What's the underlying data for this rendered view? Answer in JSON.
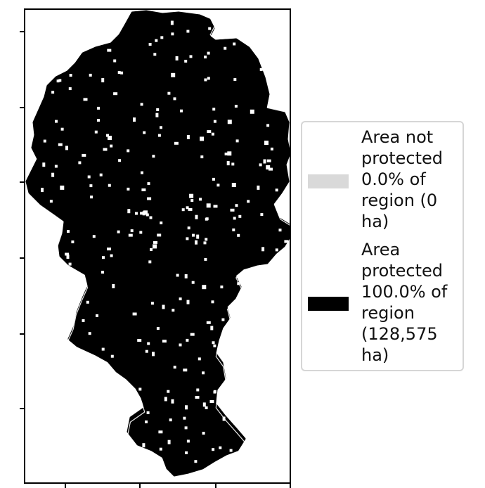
{
  "map": {
    "colors": {
      "protected": "#000000",
      "not_protected": "#d9d9d9",
      "outline": "#000000",
      "background": "#ffffff"
    }
  },
  "legend": {
    "entries": [
      {
        "label": "Area not protected 0.0% of region (0 ha)",
        "color": "#d9d9d9",
        "percent": 0.0,
        "hectares": 0
      },
      {
        "label": "Area protected 100.0% of region (128,575 ha)",
        "color": "#000000",
        "percent": 100.0,
        "hectares": 128575
      }
    ]
  }
}
